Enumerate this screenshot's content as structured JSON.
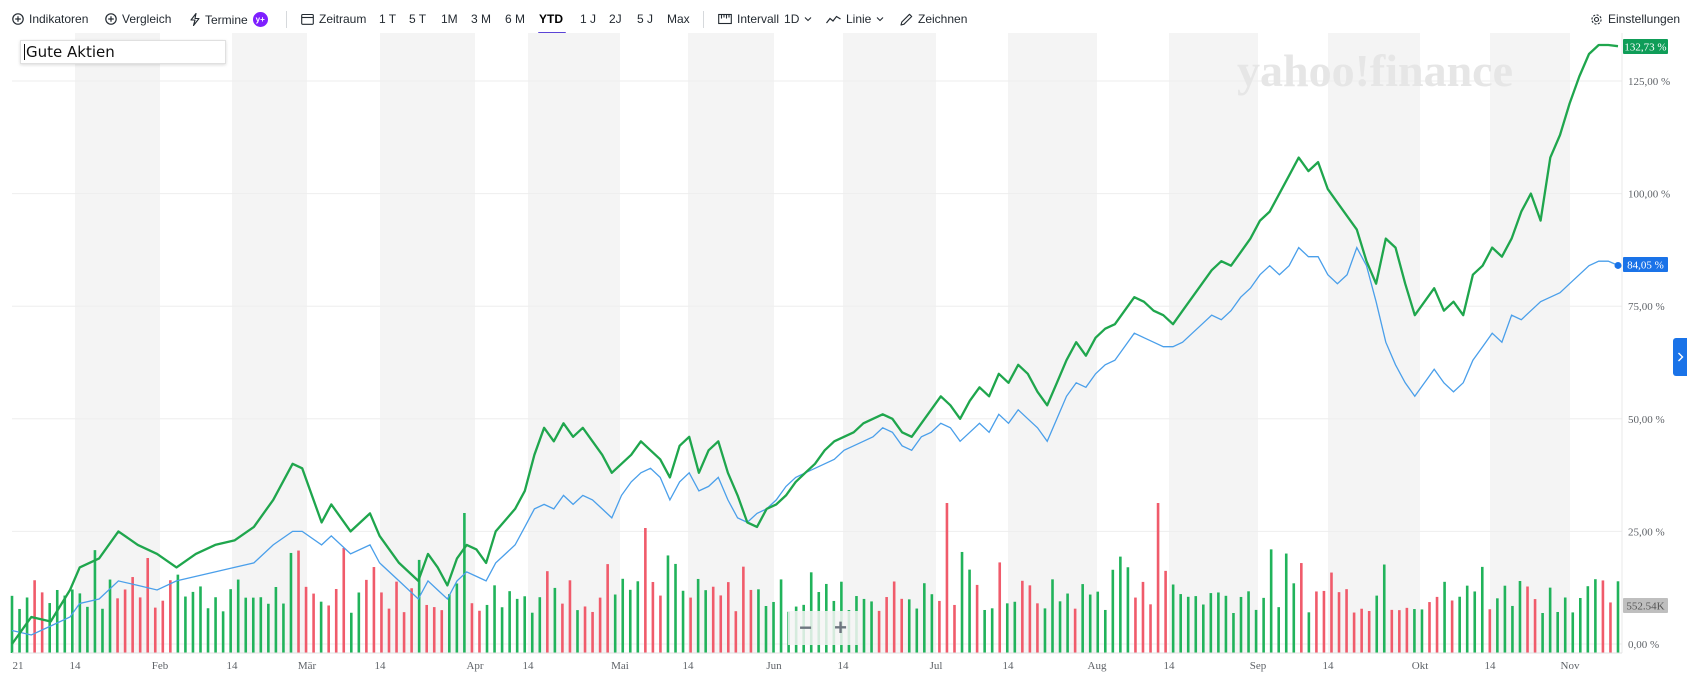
{
  "toolbar": {
    "indicators": "Indikatoren",
    "compare": "Vergleich",
    "events": "Termine",
    "events_badge": "y+",
    "timeframe": "Zeitraum",
    "ranges": [
      "1 T",
      "5 T",
      "1M",
      "3 M",
      "6 M",
      "YTD",
      "1 J",
      "2J",
      "5 J",
      "Max"
    ],
    "active_range": "YTD",
    "interval_label": "Intervall",
    "interval_value": "1D",
    "chart_type": "Linie",
    "draw": "Zeichnen",
    "settings": "Einstellungen"
  },
  "legend_label": "Gute Aktien",
  "watermark": "yahoo!finance",
  "zoom": {
    "minus": "−",
    "plus": "+"
  },
  "colors": {
    "series_main": "#1fa64d",
    "series_compare": "#4a9fea",
    "volume_up": "#21b35b",
    "volume_down": "#f05b6b",
    "active_tab": "#5b44d6",
    "badge": "#7e1fff"
  },
  "chart_data": {
    "type": "line",
    "title": "Gute Aktien",
    "x_ticks": [
      "21",
      "14",
      "Feb",
      "14",
      "Mär",
      "14",
      "Apr",
      "14",
      "Mai",
      "14",
      "Jun",
      "14",
      "Jul",
      "14",
      "Aug",
      "14",
      "Sep",
      "14",
      "Okt",
      "14",
      "Nov"
    ],
    "y_ticks": [
      "0,00 %",
      "25,00 %",
      "50,00 %",
      "75,00 %",
      "100,00 %",
      "125,00 %"
    ],
    "ylim": [
      -2,
      136
    ],
    "grid": true,
    "series": [
      {
        "name": "Gute Aktien",
        "last_label": "132,73 %",
        "points": [
          [
            0,
            0
          ],
          [
            4,
            6
          ],
          [
            8,
            5
          ],
          [
            12,
            12
          ],
          [
            14,
            17
          ],
          [
            18,
            19
          ],
          [
            22,
            25
          ],
          [
            26,
            22
          ],
          [
            30,
            20
          ],
          [
            34,
            17
          ],
          [
            38,
            20
          ],
          [
            42,
            22
          ],
          [
            46,
            23
          ],
          [
            50,
            26
          ],
          [
            54,
            32
          ],
          [
            58,
            40
          ],
          [
            60,
            39
          ],
          [
            64,
            27
          ],
          [
            66,
            31
          ],
          [
            70,
            25
          ],
          [
            74,
            29
          ],
          [
            76,
            24
          ],
          [
            80,
            18
          ],
          [
            84,
            14
          ],
          [
            86,
            20
          ],
          [
            88,
            17
          ],
          [
            90,
            13
          ],
          [
            92,
            19
          ],
          [
            94,
            22
          ],
          [
            96,
            21
          ],
          [
            98,
            18
          ],
          [
            100,
            25
          ],
          [
            104,
            30
          ],
          [
            106,
            34
          ],
          [
            108,
            42
          ],
          [
            110,
            48
          ],
          [
            112,
            45
          ],
          [
            114,
            49
          ],
          [
            116,
            46
          ],
          [
            118,
            48
          ],
          [
            120,
            45
          ],
          [
            122,
            42
          ],
          [
            124,
            38
          ],
          [
            126,
            40
          ],
          [
            128,
            42
          ],
          [
            130,
            45
          ],
          [
            132,
            43
          ],
          [
            134,
            41
          ],
          [
            136,
            37
          ],
          [
            138,
            44
          ],
          [
            140,
            46
          ],
          [
            142,
            38
          ],
          [
            144,
            43
          ],
          [
            146,
            45
          ],
          [
            148,
            38
          ],
          [
            150,
            33
          ],
          [
            152,
            27
          ],
          [
            154,
            26
          ],
          [
            156,
            30
          ],
          [
            158,
            31
          ],
          [
            160,
            33
          ],
          [
            162,
            36
          ],
          [
            164,
            38
          ],
          [
            166,
            40
          ],
          [
            168,
            43
          ],
          [
            170,
            45
          ],
          [
            172,
            46
          ],
          [
            174,
            47
          ],
          [
            176,
            49
          ],
          [
            178,
            50
          ],
          [
            180,
            51
          ],
          [
            182,
            50
          ],
          [
            184,
            47
          ],
          [
            186,
            46
          ],
          [
            188,
            49
          ],
          [
            190,
            52
          ],
          [
            192,
            55
          ],
          [
            194,
            53
          ],
          [
            196,
            50
          ],
          [
            198,
            54
          ],
          [
            200,
            57
          ],
          [
            202,
            55
          ],
          [
            204,
            60
          ],
          [
            206,
            58
          ],
          [
            208,
            62
          ],
          [
            210,
            60
          ],
          [
            212,
            56
          ],
          [
            214,
            53
          ],
          [
            216,
            58
          ],
          [
            218,
            63
          ],
          [
            220,
            67
          ],
          [
            222,
            64
          ],
          [
            224,
            68
          ],
          [
            226,
            70
          ],
          [
            228,
            71
          ],
          [
            230,
            74
          ],
          [
            232,
            77
          ],
          [
            234,
            76
          ],
          [
            236,
            74
          ],
          [
            238,
            73
          ],
          [
            240,
            71
          ],
          [
            242,
            74
          ],
          [
            244,
            77
          ],
          [
            246,
            80
          ],
          [
            248,
            83
          ],
          [
            250,
            85
          ],
          [
            252,
            84
          ],
          [
            254,
            87
          ],
          [
            256,
            90
          ],
          [
            258,
            94
          ],
          [
            260,
            96
          ],
          [
            262,
            100
          ],
          [
            264,
            104
          ],
          [
            266,
            108
          ],
          [
            268,
            105
          ],
          [
            270,
            107
          ],
          [
            272,
            101
          ],
          [
            274,
            98
          ],
          [
            276,
            95
          ],
          [
            278,
            92
          ],
          [
            280,
            85
          ],
          [
            282,
            80
          ],
          [
            284,
            90
          ],
          [
            286,
            88
          ],
          [
            288,
            80
          ],
          [
            290,
            73
          ],
          [
            292,
            76
          ],
          [
            294,
            79
          ],
          [
            296,
            74
          ],
          [
            298,
            76
          ],
          [
            300,
            73
          ],
          [
            302,
            82
          ],
          [
            304,
            84
          ],
          [
            306,
            88
          ],
          [
            308,
            86
          ],
          [
            310,
            90
          ],
          [
            312,
            96
          ],
          [
            314,
            100
          ],
          [
            316,
            94
          ],
          [
            318,
            108
          ],
          [
            320,
            113
          ],
          [
            322,
            120
          ],
          [
            324,
            126
          ],
          [
            326,
            131
          ],
          [
            328,
            133
          ],
          [
            330,
            133
          ],
          [
            332,
            132.73
          ]
        ]
      },
      {
        "name": "Vergleich",
        "last_label": "84,05 %",
        "points": [
          [
            0,
            3
          ],
          [
            4,
            2
          ],
          [
            8,
            4
          ],
          [
            12,
            6
          ],
          [
            14,
            9
          ],
          [
            18,
            10
          ],
          [
            22,
            14
          ],
          [
            26,
            13
          ],
          [
            30,
            12
          ],
          [
            34,
            14
          ],
          [
            38,
            15
          ],
          [
            42,
            16
          ],
          [
            46,
            17
          ],
          [
            50,
            18
          ],
          [
            54,
            22
          ],
          [
            58,
            25
          ],
          [
            60,
            25
          ],
          [
            64,
            22
          ],
          [
            66,
            24
          ],
          [
            70,
            20
          ],
          [
            74,
            22
          ],
          [
            76,
            18
          ],
          [
            80,
            14
          ],
          [
            84,
            10
          ],
          [
            86,
            14
          ],
          [
            88,
            12
          ],
          [
            90,
            10
          ],
          [
            92,
            14
          ],
          [
            94,
            16
          ],
          [
            96,
            15
          ],
          [
            98,
            14
          ],
          [
            100,
            18
          ],
          [
            104,
            22
          ],
          [
            106,
            26
          ],
          [
            108,
            30
          ],
          [
            110,
            31
          ],
          [
            112,
            30
          ],
          [
            114,
            33
          ],
          [
            116,
            31
          ],
          [
            118,
            33
          ],
          [
            120,
            32
          ],
          [
            122,
            30
          ],
          [
            124,
            28
          ],
          [
            126,
            33
          ],
          [
            128,
            36
          ],
          [
            130,
            38
          ],
          [
            132,
            39
          ],
          [
            134,
            37
          ],
          [
            136,
            32
          ],
          [
            138,
            36
          ],
          [
            140,
            38
          ],
          [
            142,
            34
          ],
          [
            144,
            35
          ],
          [
            146,
            37
          ],
          [
            148,
            32
          ],
          [
            150,
            28
          ],
          [
            152,
            27
          ],
          [
            154,
            29
          ],
          [
            156,
            30
          ],
          [
            158,
            32
          ],
          [
            160,
            35
          ],
          [
            162,
            37
          ],
          [
            164,
            38
          ],
          [
            166,
            39
          ],
          [
            168,
            40
          ],
          [
            170,
            41
          ],
          [
            172,
            43
          ],
          [
            174,
            44
          ],
          [
            176,
            45
          ],
          [
            178,
            46
          ],
          [
            180,
            48
          ],
          [
            182,
            47
          ],
          [
            184,
            44
          ],
          [
            186,
            43
          ],
          [
            188,
            46
          ],
          [
            190,
            47
          ],
          [
            192,
            49
          ],
          [
            194,
            48
          ],
          [
            196,
            45
          ],
          [
            198,
            47
          ],
          [
            200,
            49
          ],
          [
            202,
            47
          ],
          [
            204,
            51
          ],
          [
            206,
            49
          ],
          [
            208,
            52
          ],
          [
            210,
            50
          ],
          [
            212,
            48
          ],
          [
            214,
            45
          ],
          [
            216,
            50
          ],
          [
            218,
            55
          ],
          [
            220,
            58
          ],
          [
            222,
            57
          ],
          [
            224,
            60
          ],
          [
            226,
            62
          ],
          [
            228,
            63
          ],
          [
            230,
            66
          ],
          [
            232,
            69
          ],
          [
            234,
            68
          ],
          [
            236,
            67
          ],
          [
            238,
            66
          ],
          [
            240,
            66
          ],
          [
            242,
            67
          ],
          [
            244,
            69
          ],
          [
            246,
            71
          ],
          [
            248,
            73
          ],
          [
            250,
            72
          ],
          [
            252,
            74
          ],
          [
            254,
            77
          ],
          [
            256,
            79
          ],
          [
            258,
            82
          ],
          [
            260,
            84
          ],
          [
            262,
            82
          ],
          [
            264,
            84
          ],
          [
            266,
            88
          ],
          [
            268,
            86
          ],
          [
            270,
            86
          ],
          [
            272,
            82
          ],
          [
            274,
            80
          ],
          [
            276,
            82
          ],
          [
            278,
            88
          ],
          [
            280,
            84
          ],
          [
            282,
            76
          ],
          [
            284,
            67
          ],
          [
            286,
            62
          ],
          [
            288,
            58
          ],
          [
            290,
            55
          ],
          [
            292,
            58
          ],
          [
            294,
            61
          ],
          [
            296,
            58
          ],
          [
            298,
            56
          ],
          [
            300,
            58
          ],
          [
            302,
            63
          ],
          [
            304,
            66
          ],
          [
            306,
            69
          ],
          [
            308,
            67
          ],
          [
            310,
            73
          ],
          [
            312,
            72
          ],
          [
            314,
            74
          ],
          [
            316,
            76
          ],
          [
            318,
            77
          ],
          [
            320,
            78
          ],
          [
            322,
            80
          ],
          [
            324,
            82
          ],
          [
            326,
            84
          ],
          [
            328,
            85
          ],
          [
            330,
            85
          ],
          [
            332,
            84.05
          ]
        ]
      }
    ],
    "volume": {
      "last_label": "552.54K"
    }
  }
}
